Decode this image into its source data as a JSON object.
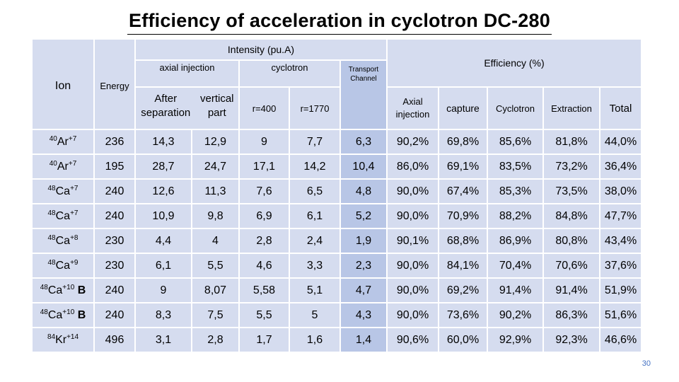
{
  "title": "Efficiency of acceleration in cyclotron DC-280",
  "page_number": "30",
  "headers": {
    "ion": "Ion",
    "energy": "Energy",
    "intensity": "Intensity (pu.A)",
    "efficiency": "Efficiency (%)",
    "axial_injection_group": "axial injection",
    "cyclotron_group": "cyclotron",
    "after_separation": "After separation",
    "vertical_part": "vertical part",
    "r400": "r=400",
    "r1770": "r=1770",
    "transport_channel": "Transport Channel",
    "axial_injection": "Axial injection",
    "capture": "capture",
    "cyclotron": "Cyclotron",
    "extraction": "Extraction",
    "total": "Total"
  },
  "rows": [
    {
      "mass": "40",
      "element": "Ar",
      "charge": "+7",
      "suffix": "",
      "energy": "236",
      "after_sep": "14,3",
      "vertical": "12,9",
      "r400": "9",
      "r1770": "7,7",
      "transport": "6,3",
      "axial": "90,2%",
      "capture": "69,8%",
      "cyclotron": "85,6%",
      "extraction": "81,8%",
      "total": "44,0%"
    },
    {
      "mass": "40",
      "element": "Ar",
      "charge": "+7",
      "suffix": "",
      "energy": "195",
      "after_sep": "28,7",
      "vertical": "24,7",
      "r400": "17,1",
      "r1770": "14,2",
      "transport": "10,4",
      "axial": "86,0%",
      "capture": "69,1%",
      "cyclotron": "83,5%",
      "extraction": "73,2%",
      "total": "36,4%"
    },
    {
      "mass": "48",
      "element": "Ca",
      "charge": "+7",
      "suffix": "",
      "energy": "240",
      "after_sep": "12,6",
      "vertical": "11,3",
      "r400": "7,6",
      "r1770": "6,5",
      "transport": "4,8",
      "axial": "90,0%",
      "capture": "67,4%",
      "cyclotron": "85,3%",
      "extraction": "73,5%",
      "total": "38,0%"
    },
    {
      "mass": "48",
      "element": "Ca",
      "charge": "+7",
      "suffix": "",
      "energy": "240",
      "after_sep": "10,9",
      "vertical": "9,8",
      "r400": "6,9",
      "r1770": "6,1",
      "transport": "5,2",
      "axial": "90,0%",
      "capture": "70,9%",
      "cyclotron": "88,2%",
      "extraction": "84,8%",
      "total": "47,7%"
    },
    {
      "mass": "48",
      "element": "Ca",
      "charge": "+8",
      "suffix": "",
      "energy": "230",
      "after_sep": "4,4",
      "vertical": "4",
      "r400": "2,8",
      "r1770": "2,4",
      "transport": "1,9",
      "axial": "90,1%",
      "capture": "68,8%",
      "cyclotron": "86,9%",
      "extraction": "80,8%",
      "total": "43,4%"
    },
    {
      "mass": "48",
      "element": "Ca",
      "charge": "+9",
      "suffix": "",
      "energy": "230",
      "after_sep": "6,1",
      "vertical": "5,5",
      "r400": "4,6",
      "r1770": "3,3",
      "transport": "2,3",
      "axial": "90,0%",
      "capture": "84,1%",
      "cyclotron": "70,4%",
      "extraction": "70,6%",
      "total": "37,6%"
    },
    {
      "mass": "48",
      "element": "Ca",
      "charge": "+10",
      "suffix": "B",
      "energy": "240",
      "after_sep": "9",
      "vertical": "8,07",
      "r400": "5,58",
      "r1770": "5,1",
      "transport": "4,7",
      "axial": "90,0%",
      "capture": "69,2%",
      "cyclotron": "91,4%",
      "extraction": "91,4%",
      "total": "51,9%"
    },
    {
      "mass": "48",
      "element": "Ca",
      "charge": "+10",
      "suffix": "B",
      "energy": "240",
      "after_sep": "8,3",
      "vertical": "7,5",
      "r400": "5,5",
      "r1770": "5",
      "transport": "4,3",
      "axial": "90,0%",
      "capture": "73,6%",
      "cyclotron": "90,2%",
      "extraction": "86,3%",
      "total": "51,6%"
    },
    {
      "mass": "84",
      "element": "Kr",
      "charge": "+14",
      "suffix": "",
      "energy": "496",
      "after_sep": "3,1",
      "vertical": "2,8",
      "r400": "1,7",
      "r1770": "1,6",
      "transport": "1,4",
      "axial": "90,6%",
      "capture": "60,0%",
      "cyclotron": "92,9%",
      "extraction": "92,3%",
      "total": "46,6%"
    }
  ]
}
